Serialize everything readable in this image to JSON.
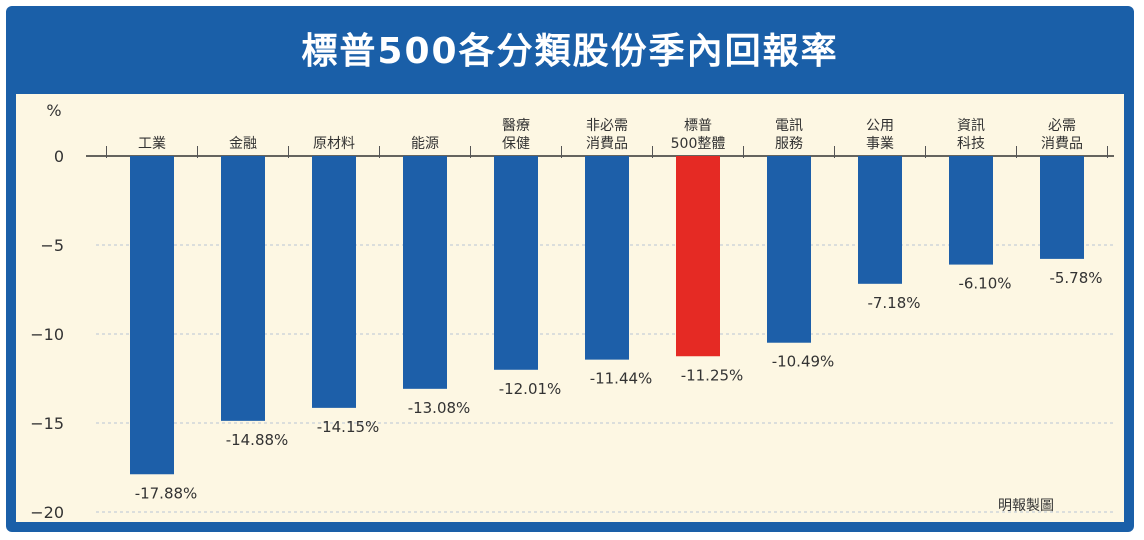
{
  "chart_data": {
    "type": "bar",
    "title": "標普500各分類股份季內回報率",
    "ylabel": "%",
    "source": "明報製圖",
    "ylim": [
      -20,
      0
    ],
    "yticks": [
      0,
      -5,
      -10,
      -15,
      -20
    ],
    "categories": [
      [
        "工業"
      ],
      [
        "金融"
      ],
      [
        "原材料"
      ],
      [
        "能源"
      ],
      [
        "醫療",
        "保健"
      ],
      [
        "非必需",
        "消費品"
      ],
      [
        "標普",
        "500整體"
      ],
      [
        "電訊",
        "服務"
      ],
      [
        "公用",
        "事業"
      ],
      [
        "資訊",
        "科技"
      ],
      [
        "必需",
        "消費品"
      ]
    ],
    "values": [
      -17.88,
      -14.88,
      -14.15,
      -13.08,
      -12.01,
      -11.44,
      -11.25,
      -10.49,
      -7.18,
      -6.1,
      -5.78
    ],
    "labels": [
      "-17.88%",
      "-14.88%",
      "-14.15%",
      "-13.08%",
      "-12.01%",
      "-11.44%",
      "-11.25%",
      "-10.49%",
      "-7.18%",
      "-6.10%",
      "-5.78%"
    ],
    "highlight_index": 6,
    "colors": {
      "bar": "#1d5fa9",
      "highlight": "#e52a24",
      "highlight_label": "#e52a24",
      "label": "#333333"
    },
    "grid": true
  }
}
